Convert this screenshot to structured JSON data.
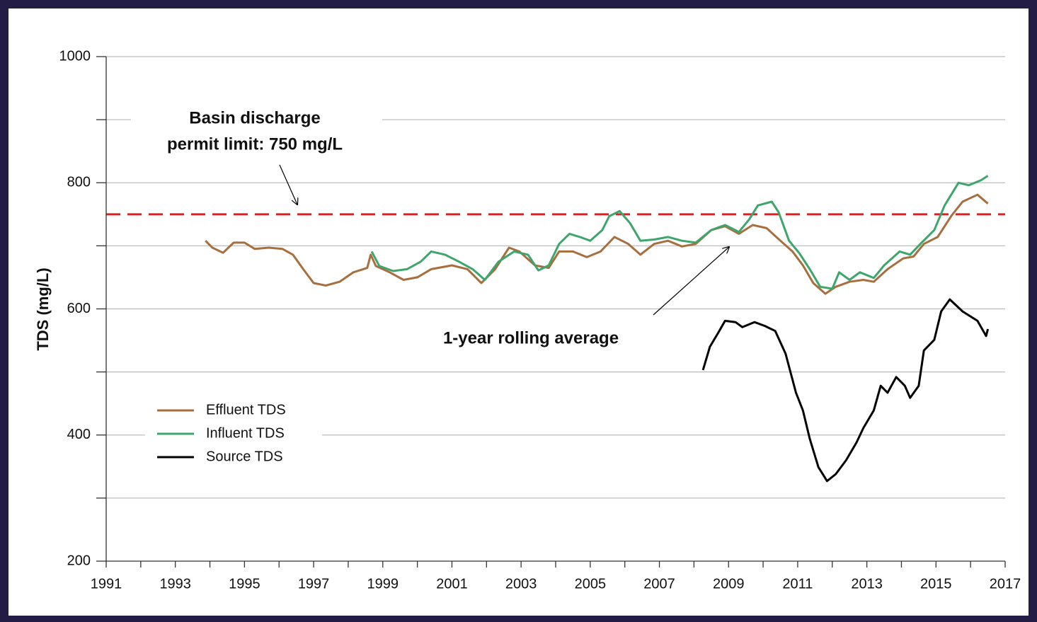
{
  "chart_data": {
    "type": "line",
    "y_label": "TDS (mg/L)",
    "xlim": [
      1991,
      2017
    ],
    "xticks": [
      1991,
      1993,
      1995,
      1997,
      1999,
      2001,
      2003,
      2005,
      2007,
      2009,
      2011,
      2013,
      2015,
      2017
    ],
    "minor_xticks": [
      1992,
      1994,
      1996,
      1998,
      2000,
      2002,
      2004,
      2006,
      2008,
      2010,
      2012,
      2014,
      2016
    ],
    "ylim": [
      200,
      1000
    ],
    "yticks": [
      200,
      400,
      600,
      800,
      1000
    ],
    "minor_yticks": [
      300,
      500,
      700,
      900
    ],
    "grid": true,
    "legend": "lower left",
    "reference_line": {
      "value": 750,
      "color": "#e02020",
      "dashed": true
    },
    "annotations": [
      {
        "lines": [
          "Basin discharge",
          "permit limit: 750 mg/L"
        ]
      },
      {
        "lines": [
          "1-year rolling average"
        ]
      }
    ],
    "series": [
      {
        "name": "Effluent TDS",
        "color": "#a86f3e",
        "x": [
          1993.87,
          1994.07,
          1994.38,
          1994.69,
          1995.0,
          1995.3,
          1995.7,
          1996.1,
          1996.4,
          1996.7,
          1997.0,
          1997.35,
          1997.75,
          1998.15,
          1998.55,
          1998.65,
          1998.8,
          1999.2,
          1999.6,
          2000.0,
          2000.4,
          2001.0,
          2001.45,
          2001.85,
          2002.25,
          2002.65,
          2002.95,
          2003.4,
          2003.8,
          2004.1,
          2004.5,
          2004.9,
          2005.3,
          2005.7,
          2006.1,
          2006.45,
          2006.85,
          2007.25,
          2007.65,
          2008.05,
          2008.5,
          2008.9,
          2009.3,
          2009.7,
          2010.1,
          2010.5,
          2010.85,
          2011.15,
          2011.45,
          2011.8,
          2012.1,
          2012.5,
          2012.9,
          2013.2,
          2013.6,
          2014.05,
          2014.35,
          2014.65,
          2015.05,
          2015.45,
          2015.77,
          2016.2,
          2016.5
        ],
        "values": [
          708,
          697,
          689,
          705,
          705,
          695,
          697,
          695,
          686,
          663,
          641,
          637,
          643,
          658,
          665,
          686,
          668,
          658,
          646,
          650,
          663,
          669,
          663,
          641,
          663,
          697,
          691,
          669,
          665,
          691,
          691,
          682,
          691,
          714,
          703,
          686,
          703,
          708,
          699,
          703,
          725,
          731,
          719,
          733,
          728,
          708,
          691,
          669,
          641,
          624,
          635,
          643,
          646,
          643,
          663,
          680,
          683,
          703,
          714,
          748,
          770,
          781,
          767
        ]
      },
      {
        "name": "Influent TDS",
        "color": "#3ea56c",
        "x": [
          1998.68,
          1998.9,
          1999.3,
          1999.7,
          2000.1,
          2000.4,
          2000.8,
          2001.2,
          2001.6,
          2001.95,
          2002.35,
          2002.8,
          2003.2,
          2003.5,
          2003.8,
          2004.1,
          2004.4,
          2004.7,
          2005.0,
          2005.35,
          2005.55,
          2005.85,
          2006.15,
          2006.45,
          2006.85,
          2007.25,
          2007.65,
          2008.05,
          2008.5,
          2008.9,
          2009.3,
          2009.6,
          2009.85,
          2010.25,
          2010.45,
          2010.75,
          2011.05,
          2011.35,
          2011.65,
          2012.0,
          2012.2,
          2012.5,
          2012.8,
          2013.2,
          2013.5,
          2013.95,
          2014.25,
          2014.55,
          2014.95,
          2015.25,
          2015.65,
          2015.95,
          2016.3,
          2016.5
        ],
        "values": [
          691,
          668,
          660,
          663,
          675,
          691,
          686,
          675,
          663,
          646,
          675,
          691,
          686,
          661,
          669,
          703,
          719,
          714,
          708,
          725,
          747,
          755,
          736,
          708,
          710,
          714,
          708,
          705,
          725,
          733,
          722,
          742,
          764,
          770,
          753,
          708,
          688,
          663,
          635,
          632,
          658,
          646,
          658,
          649,
          669,
          691,
          686,
          703,
          725,
          764,
          800,
          796,
          804,
          811
        ]
      },
      {
        "name": "Source TDS",
        "color": "#000000",
        "x": [
          2008.26,
          2008.46,
          2008.7,
          2008.9,
          2009.2,
          2009.4,
          2009.75,
          2010.05,
          2010.35,
          2010.65,
          2010.95,
          2011.15,
          2011.35,
          2011.6,
          2011.85,
          2012.1,
          2012.4,
          2012.7,
          2012.9,
          2013.2,
          2013.4,
          2013.6,
          2013.85,
          2014.1,
          2014.25,
          2014.5,
          2014.65,
          2014.95,
          2015.15,
          2015.4,
          2015.77,
          2016.2,
          2016.45,
          2016.5
        ],
        "values": [
          503,
          540,
          562,
          581,
          579,
          571,
          579,
          573,
          565,
          529,
          467,
          439,
          394,
          349,
          327,
          338,
          360,
          388,
          411,
          439,
          478,
          467,
          492,
          478,
          459,
          478,
          534,
          551,
          596,
          615,
          596,
          581,
          557,
          568
        ]
      }
    ]
  }
}
